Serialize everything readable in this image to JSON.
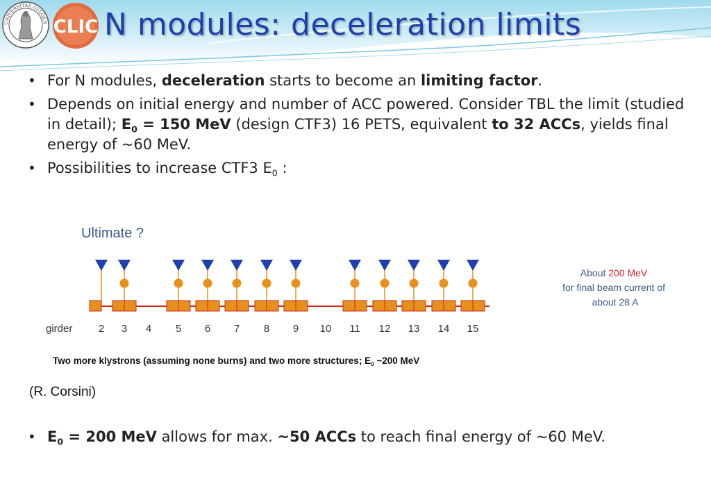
{
  "slide": {
    "title": "N modules: deceleration limits",
    "seal_text": "UNIVERSITAS OSLOENSIS MDCCCXI",
    "logo_text": "CLIC"
  },
  "bullets": {
    "b1": {
      "pre": "For N modules, ",
      "bold1": "deceleration",
      "mid": " starts to become an ",
      "bold2": "limiting factor",
      "post": "."
    },
    "b2": {
      "pre": "Depends on initial energy and number of ACC powered. Consider TBL the limit (studied in detail); ",
      "bold_e": "E",
      "bold_sub": "0",
      "bold_rest": " = 150 MeV",
      "mid": " (design CTF3) 16 PETS, equivalent ",
      "bold2": "to 32 ACCs",
      "post": ", yields final energy of ~60 MeV."
    },
    "b3": {
      "pre": "Possibilities to increase CTF3 E",
      "sub": "0",
      "post": " :"
    },
    "b4": {
      "bold_e": "E",
      "bold_sub": "0",
      "bold_rest": " = 200 MeV",
      "mid": " allows for max. ",
      "bold2": "~50 ACCs",
      "post": " to reach final energy of ~60 MeV."
    }
  },
  "diagram": {
    "heading": "Ultimate ?",
    "row_label": "girder",
    "girders": [
      {
        "num": "2",
        "klystron": true,
        "structure": false
      },
      {
        "num": "3",
        "klystron": true,
        "structure": true
      },
      {
        "num": "4",
        "klystron": false,
        "structure": false
      },
      {
        "num": "5",
        "klystron": true,
        "structure": true
      },
      {
        "num": "6",
        "klystron": true,
        "structure": true
      },
      {
        "num": "7",
        "klystron": true,
        "structure": true
      },
      {
        "num": "8",
        "klystron": true,
        "structure": true
      },
      {
        "num": "9",
        "klystron": true,
        "structure": true
      },
      {
        "num": "10",
        "klystron": false,
        "structure": false
      },
      {
        "num": "11",
        "klystron": true,
        "structure": true
      },
      {
        "num": "12",
        "klystron": true,
        "structure": true
      },
      {
        "num": "13",
        "klystron": true,
        "structure": true
      },
      {
        "num": "14",
        "klystron": true,
        "structure": true
      },
      {
        "num": "15",
        "klystron": true,
        "structure": true
      }
    ],
    "note_line1_pre": "About ",
    "note_line1_value": "200 MeV",
    "note_line2": "for final beam current of",
    "note_line3": "about 28 A",
    "colors": {
      "klystron": "#1f3fae",
      "structure": "#e8901c",
      "beamline": "#cc2a1a",
      "heading": "#3a5a8c",
      "note_highlight": "#e0202a"
    }
  },
  "caption": {
    "pre": "Two more klystrons (assuming none burns) and two more structures; E",
    "sub": "0",
    "post": " ~200 MeV"
  },
  "credit": "(R. Corsini)"
}
